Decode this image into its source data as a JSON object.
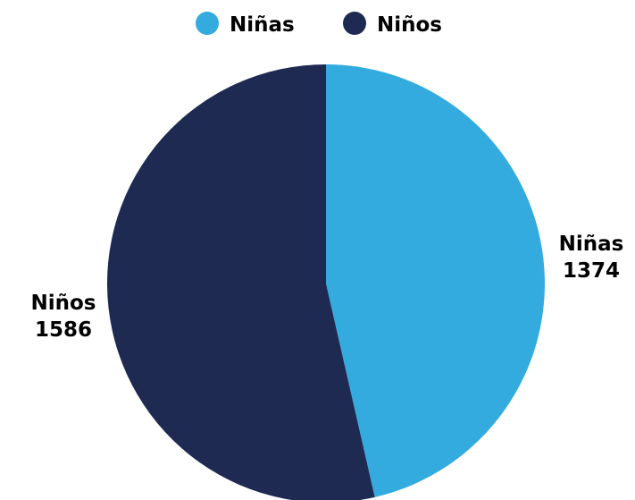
{
  "chart_data": {
    "type": "pie",
    "title": "",
    "legend_position": "top",
    "slices": [
      {
        "label": "Niñas",
        "value": 1374,
        "color": "#34ABDF"
      },
      {
        "label": "Niños",
        "value": 1586,
        "color": "#1E2A52"
      }
    ],
    "data_labels": [
      {
        "name": "Niñas",
        "value": "1374"
      },
      {
        "name": "Niños",
        "value": "1586"
      }
    ]
  },
  "legend": {
    "items": [
      {
        "label": "Niñas",
        "color": "#34ABDF"
      },
      {
        "label": "Niños",
        "color": "#1E2A52"
      }
    ]
  }
}
